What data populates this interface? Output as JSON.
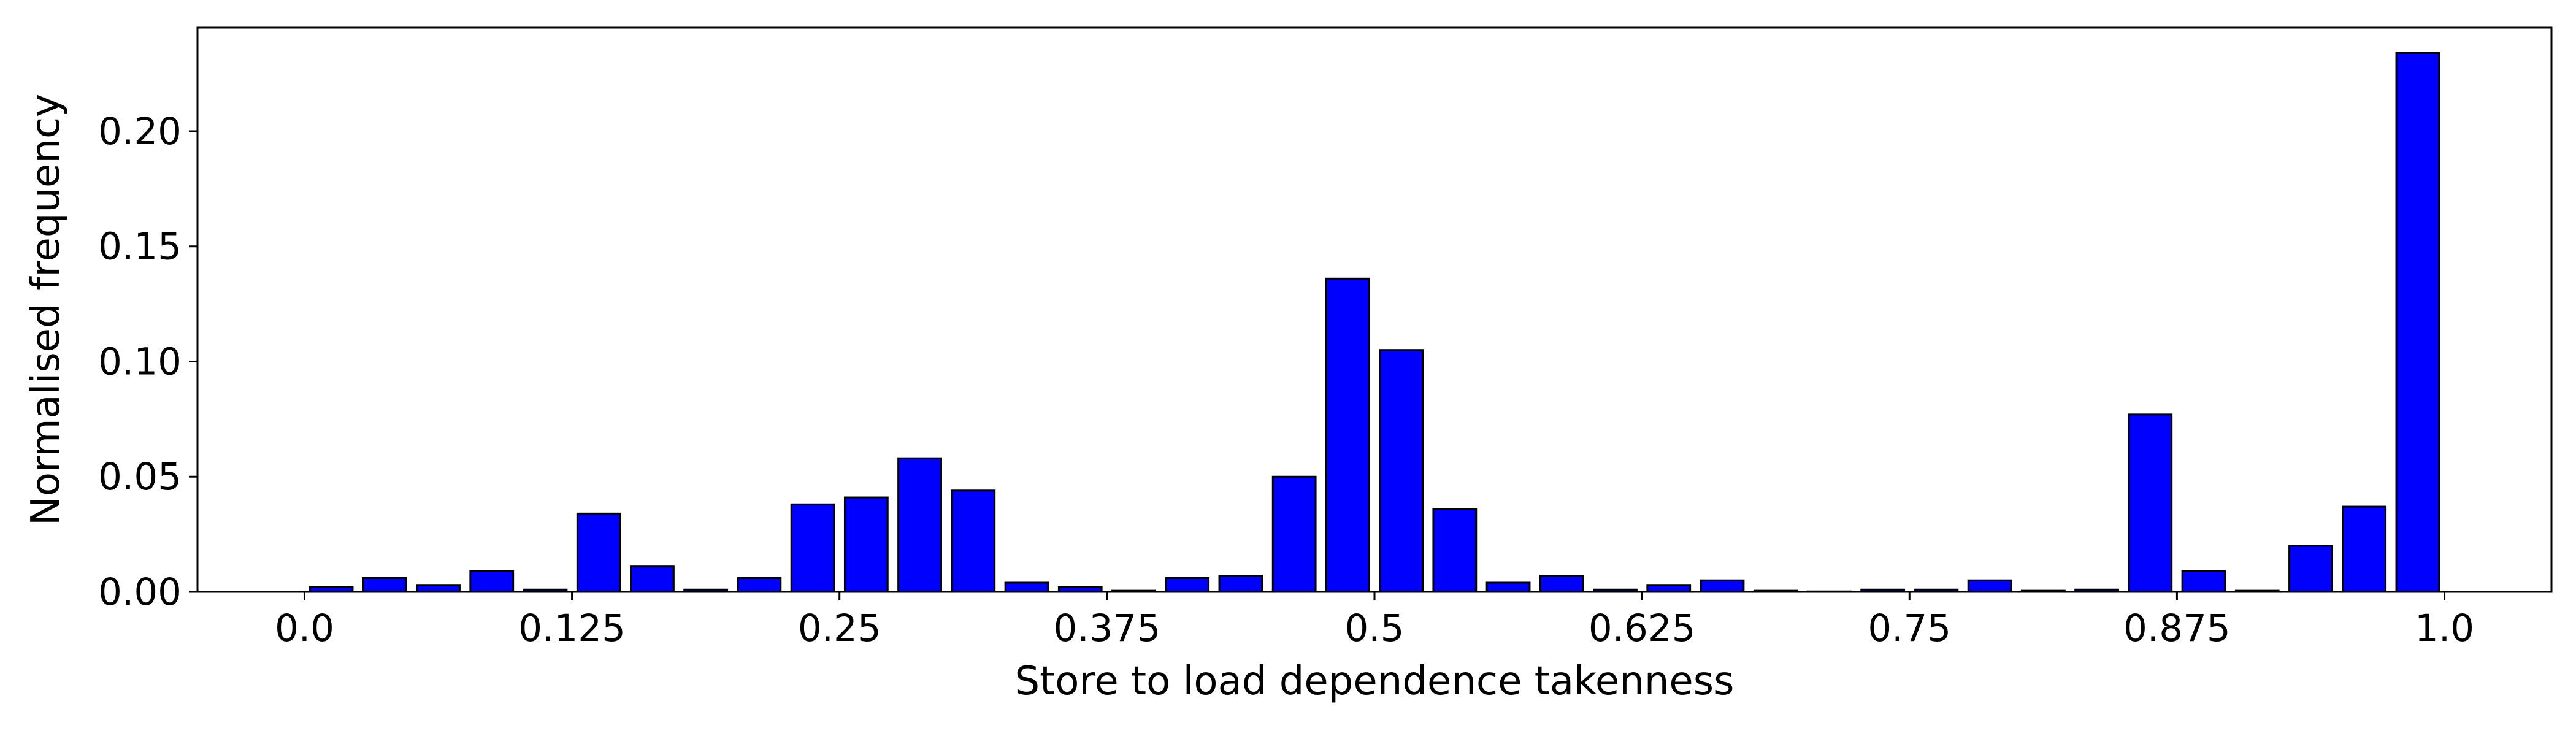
{
  "chart_data": {
    "type": "bar",
    "title": "",
    "xlabel": "Store to load dependence takenness",
    "ylabel": "Normalised frequency",
    "xlim": [
      -0.05,
      1.05
    ],
    "ylim": [
      0,
      0.245
    ],
    "grid": false,
    "bar_color": "#0000ff",
    "edge_color": "#000000",
    "x_ticks": [
      {
        "value": 0.0,
        "label": "0.0"
      },
      {
        "value": 0.125,
        "label": "0.125"
      },
      {
        "value": 0.25,
        "label": "0.25"
      },
      {
        "value": 0.375,
        "label": "0.375"
      },
      {
        "value": 0.5,
        "label": "0.5"
      },
      {
        "value": 0.625,
        "label": "0.625"
      },
      {
        "value": 0.75,
        "label": "0.75"
      },
      {
        "value": 0.875,
        "label": "0.875"
      },
      {
        "value": 1.0,
        "label": "1.0"
      }
    ],
    "y_ticks": [
      {
        "value": 0.0,
        "label": "0.00"
      },
      {
        "value": 0.05,
        "label": "0.05"
      },
      {
        "value": 0.1,
        "label": "0.10"
      },
      {
        "value": 0.15,
        "label": "0.15"
      },
      {
        "value": 0.2,
        "label": "0.20"
      }
    ],
    "x": [
      0.0125,
      0.0375,
      0.0625,
      0.0875,
      0.1125,
      0.1375,
      0.1625,
      0.1875,
      0.2125,
      0.2375,
      0.2625,
      0.2875,
      0.3125,
      0.3375,
      0.3625,
      0.3875,
      0.4125,
      0.4375,
      0.4625,
      0.4875,
      0.5125,
      0.5375,
      0.5625,
      0.5875,
      0.6125,
      0.6375,
      0.6625,
      0.6875,
      0.7125,
      0.7375,
      0.7625,
      0.7875,
      0.8125,
      0.8375,
      0.8625,
      0.8875,
      0.9125,
      0.9375,
      0.9625,
      0.9875
    ],
    "bar_width": 0.02,
    "values": [
      0.002,
      0.006,
      0.003,
      0.009,
      0.001,
      0.034,
      0.011,
      0.001,
      0.006,
      0.038,
      0.041,
      0.058,
      0.044,
      0.004,
      0.002,
      0.0005,
      0.006,
      0.007,
      0.05,
      0.136,
      0.105,
      0.036,
      0.004,
      0.007,
      0.001,
      0.003,
      0.005,
      0.0005,
      0.0002,
      0.001,
      0.001,
      0.005,
      0.0005,
      0.001,
      0.077,
      0.009,
      0.0005,
      0.02,
      0.037,
      0.234
    ]
  }
}
